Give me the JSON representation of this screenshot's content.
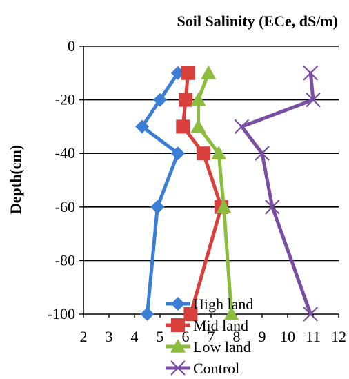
{
  "chart_data": {
    "type": "line",
    "title": "Soil Salinity (ECe, dS/m)",
    "xlabel": "",
    "ylabel": "Depth(cm)",
    "xlim": [
      2,
      12
    ],
    "ylim": [
      -100,
      0
    ],
    "x_ticks": [
      2,
      3,
      4,
      5,
      6,
      7,
      8,
      9,
      10,
      11,
      12
    ],
    "x_tick_labels": [
      "2",
      "3",
      "4",
      "5",
      "6",
      "7",
      "8",
      "9",
      "10",
      "11",
      "12"
    ],
    "y_ticks": [
      0,
      -20,
      -40,
      -60,
      -80,
      -100
    ],
    "y_tick_labels": [
      "0",
      "-20",
      "-40",
      "-60",
      "-80",
      "-100"
    ],
    "grid": "horizontal",
    "legend_position": "bottom",
    "series": [
      {
        "name": "High land",
        "color": "#3a7fd5",
        "marker": "diamond",
        "points": [
          {
            "x": 5.7,
            "y": -10
          },
          {
            "x": 5.0,
            "y": -20
          },
          {
            "x": 4.3,
            "y": -30
          },
          {
            "x": 5.7,
            "y": -40
          },
          {
            "x": 4.9,
            "y": -60
          },
          {
            "x": 4.5,
            "y": -100
          }
        ]
      },
      {
        "name": "Mid land",
        "color": "#d9403b",
        "marker": "square",
        "points": [
          {
            "x": 6.1,
            "y": -10
          },
          {
            "x": 6.0,
            "y": -20
          },
          {
            "x": 5.9,
            "y": -30
          },
          {
            "x": 6.7,
            "y": -40
          },
          {
            "x": 7.4,
            "y": -60
          },
          {
            "x": 6.2,
            "y": -100
          }
        ]
      },
      {
        "name": "Low land",
        "color": "#8cbd3f",
        "marker": "triangle",
        "points": [
          {
            "x": 6.9,
            "y": -10
          },
          {
            "x": 6.5,
            "y": -20
          },
          {
            "x": 6.5,
            "y": -30
          },
          {
            "x": 7.3,
            "y": -40
          },
          {
            "x": 7.5,
            "y": -60
          },
          {
            "x": 7.8,
            "y": -100
          }
        ]
      },
      {
        "name": "Control",
        "color": "#7a4fa3",
        "marker": "x",
        "points": [
          {
            "x": 10.9,
            "y": -10
          },
          {
            "x": 11.0,
            "y": -20
          },
          {
            "x": 8.2,
            "y": -30
          },
          {
            "x": 9.0,
            "y": -40
          },
          {
            "x": 9.4,
            "y": -60
          },
          {
            "x": 10.9,
            "y": -100
          }
        ]
      }
    ]
  }
}
